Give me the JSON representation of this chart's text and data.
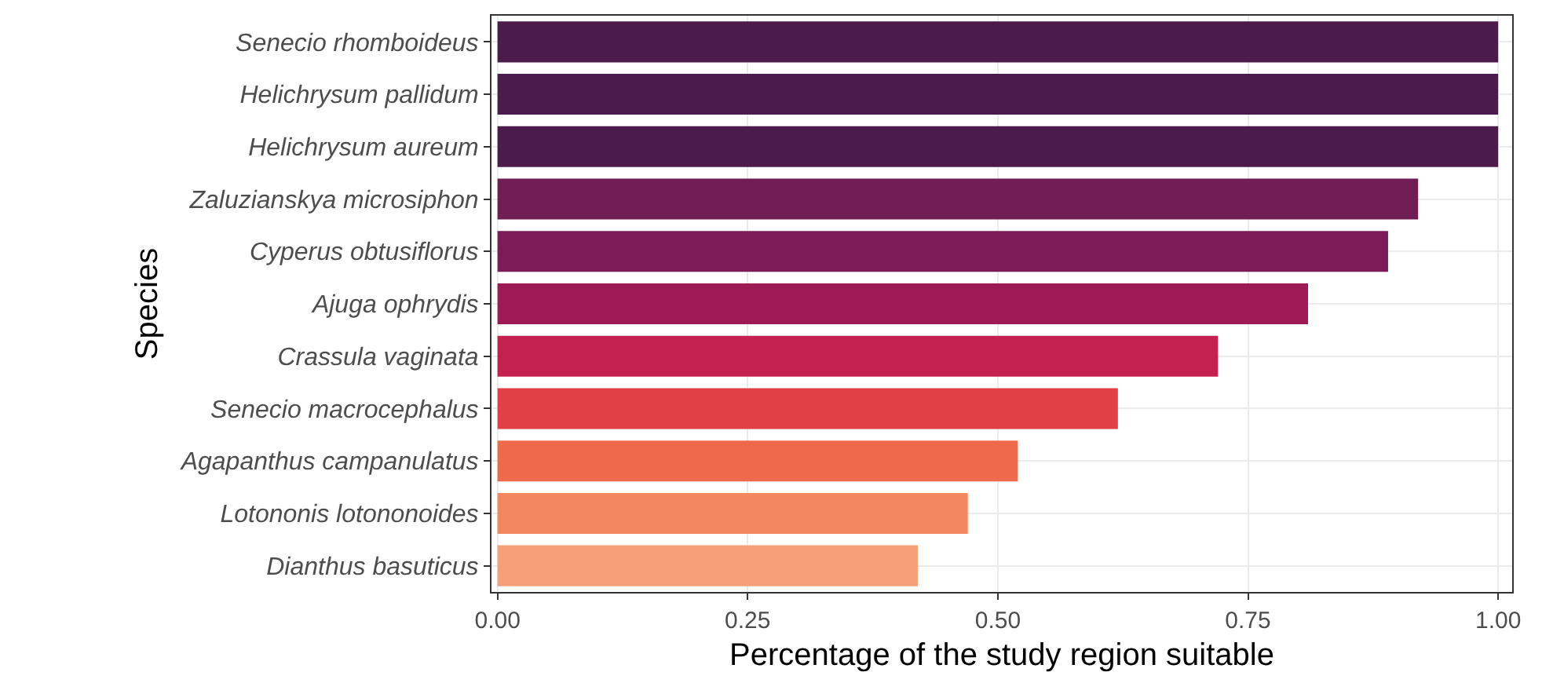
{
  "chart_data": {
    "type": "bar",
    "orientation": "horizontal",
    "xlabel": "Percentage of the study region suitable",
    "ylabel": "Species",
    "categories": [
      "Senecio rhomboideus",
      "Helichrysum pallidum",
      "Helichrysum aureum",
      "Zaluzianskya microsiphon",
      "Cyperus obtusiflorus",
      "Ajuga ophrydis",
      "Crassula vaginata",
      "Senecio macrocephalus",
      "Agapanthus campanulatus",
      "Lotononis lotononoides",
      "Dianthus basuticus"
    ],
    "values": [
      1.0,
      1.0,
      1.0,
      0.92,
      0.89,
      0.81,
      0.72,
      0.62,
      0.52,
      0.47,
      0.42
    ],
    "colors": [
      "#4b1c4b",
      "#4b1c4b",
      "#4b1c4b",
      "#701d54",
      "#7b1c58",
      "#9e1a55",
      "#c4214e",
      "#e04046",
      "#ef6a4c",
      "#f38760",
      "#f59f78"
    ],
    "xlim": [
      -0.006,
      1.014
    ],
    "xticks": [
      {
        "value": 0,
        "label": "0.00"
      },
      {
        "value": 0.25,
        "label": "0.25"
      },
      {
        "value": 0.5,
        "label": "0.50"
      },
      {
        "value": 0.75,
        "label": "0.75"
      },
      {
        "value": 1,
        "label": "1.00"
      }
    ],
    "grid": true
  }
}
